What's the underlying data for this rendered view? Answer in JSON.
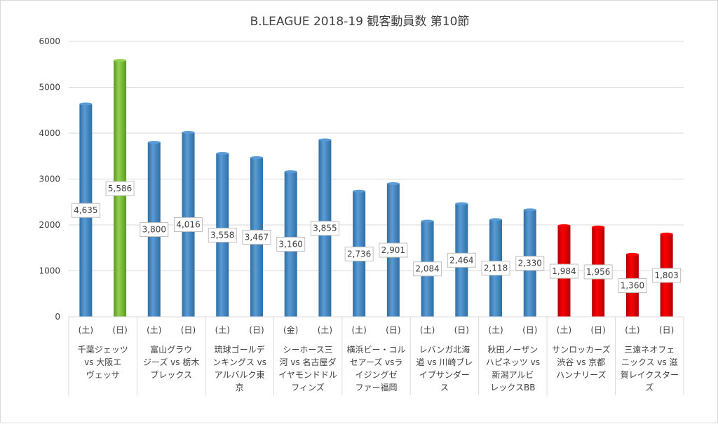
{
  "chart_data": {
    "type": "bar",
    "title": "B.LEAGUE 2018-19 観客動員数 第10節",
    "xlabel": "",
    "ylabel": "",
    "ylim": [
      0,
      6000
    ],
    "yticks": [
      "0",
      "1000",
      "2000",
      "3000",
      "4000",
      "5000",
      "6000"
    ],
    "grid": true,
    "legend": "none",
    "categories": [
      "(土)",
      "(日)",
      "(土)",
      "(日)",
      "(土)",
      "(日)",
      "(金)",
      "(土)",
      "(土)",
      "(日)",
      "(土)",
      "(日)",
      "(土)",
      "(日)",
      "(土)",
      "(日)",
      "(土)",
      "(日)"
    ],
    "values": [
      4635,
      5586,
      3800,
      4016,
      3558,
      3467,
      3160,
      3855,
      2736,
      2901,
      2084,
      2464,
      2118,
      2330,
      1984,
      1956,
      1360,
      1803
    ],
    "data_labels": [
      "4,635",
      "5,586",
      "3,800",
      "4,016",
      "3,558",
      "3,467",
      "3,160",
      "3,855",
      "2,736",
      "2,901",
      "2,084",
      "2,464",
      "2,118",
      "2,330",
      "1,984",
      "1,956",
      "1,360",
      "1,803"
    ],
    "bar_colors": [
      "blue",
      "green",
      "blue",
      "blue",
      "blue",
      "blue",
      "blue",
      "blue",
      "blue",
      "blue",
      "blue",
      "blue",
      "blue",
      "blue",
      "red",
      "red",
      "red",
      "red"
    ],
    "colors": {
      "blue": "#5b9bd5",
      "blue_dark": "#2e6ea6",
      "green": "#92d050",
      "green_dark": "#5a9a1e",
      "red": "#ff0000",
      "red_dark": "#b00000",
      "grid": "#d9d9d9",
      "text": "#404040"
    },
    "groups": [
      {
        "lines": [
          "千葉ジェッツ",
          "vs 大阪エ",
          "ヴェッサ"
        ]
      },
      {
        "lines": [
          "富山グラウ",
          "ジーズ vs 栃木",
          "ブレックス"
        ]
      },
      {
        "lines": [
          "琉球ゴールデ",
          "ンキングス vs",
          "アルバルク東",
          "京"
        ]
      },
      {
        "lines": [
          "シーホース三",
          "河 vs 名古屋ダ",
          "イヤモンドドル",
          "フィンズ"
        ]
      },
      {
        "lines": [
          "横浜ビー・コル",
          "セアーズ vsラ",
          "イジングゼ",
          "ファー福岡"
        ]
      },
      {
        "lines": [
          "レバンガ北海",
          "道 vs 川崎ブレ",
          "イブサンダー",
          "ス"
        ]
      },
      {
        "lines": [
          "秋田ノーザン",
          "ハピネッツ vs",
          "新潟アルビ",
          "レックスBB"
        ]
      },
      {
        "lines": [
          "サンロッカーズ",
          "渋谷 vs 京都",
          "ハンナリーズ"
        ]
      },
      {
        "lines": [
          "三遠ネオフェ",
          "ニックス vs 滋",
          "賀レイクスター",
          "ズ"
        ]
      }
    ]
  }
}
